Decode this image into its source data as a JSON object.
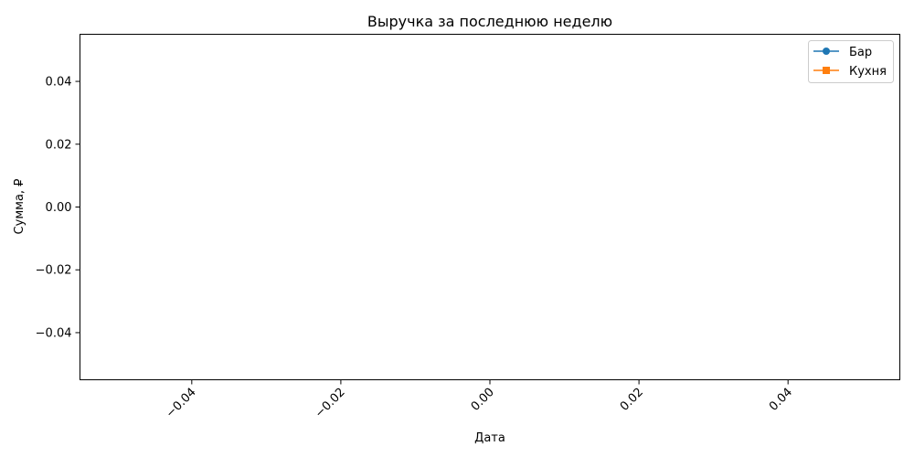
{
  "chart_data": {
    "type": "line",
    "title": "Выручка за последнюю неделю",
    "xlabel": "Дата",
    "ylabel": "Сумма, ₽",
    "xlim": [
      -0.055,
      0.055
    ],
    "ylim": [
      -0.055,
      0.055
    ],
    "x_ticks": [
      "−0.04",
      "−0.02",
      "0.00",
      "0.02",
      "0.04"
    ],
    "x_tick_values": [
      -0.04,
      -0.02,
      0.0,
      0.02,
      0.04
    ],
    "y_ticks": [
      "0.04",
      "0.02",
      "0.00",
      "−0.02",
      "−0.04"
    ],
    "y_tick_values": [
      0.04,
      0.02,
      0.0,
      -0.02,
      -0.04
    ],
    "x_tick_rotation": 45,
    "grid": false,
    "legend_position": "top-right",
    "series": [
      {
        "name": "Бар",
        "color": "#1f77b4",
        "marker": "circle",
        "x": [],
        "y": []
      },
      {
        "name": "Кухня",
        "color": "#ff7f0e",
        "marker": "square",
        "x": [],
        "y": []
      }
    ]
  }
}
